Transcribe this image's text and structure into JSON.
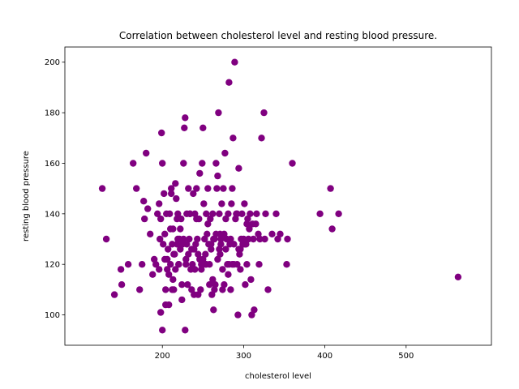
{
  "chart_data": {
    "type": "scatter",
    "title": "Correlation between cholesterol level and resting blood pressure.",
    "xlabel": "cholesterol level",
    "ylabel": "resting blood pressure",
    "xlim": [
      80,
      605
    ],
    "ylim": [
      88,
      206
    ],
    "xticks": [
      200,
      300,
      400,
      500
    ],
    "yticks": [
      100,
      120,
      140,
      160,
      180,
      200
    ],
    "grid": false,
    "marker_color": "#800080",
    "x": [
      126,
      131,
      141,
      149,
      150,
      158,
      164,
      168,
      172,
      175,
      177,
      178,
      180,
      182,
      185,
      190,
      192,
      194,
      196,
      197,
      198,
      199,
      200,
      201,
      202,
      203,
      204,
      205,
      206,
      207,
      208,
      209,
      210,
      211,
      211,
      212,
      213,
      214,
      215,
      216,
      217,
      218,
      219,
      220,
      221,
      222,
      223,
      224,
      225,
      226,
      227,
      228,
      229,
      230,
      231,
      232,
      233,
      234,
      235,
      236,
      237,
      238,
      239,
      240,
      241,
      242,
      243,
      244,
      245,
      246,
      247,
      248,
      249,
      250,
      251,
      252,
      253,
      254,
      255,
      256,
      257,
      258,
      259,
      260,
      261,
      262,
      263,
      264,
      265,
      266,
      267,
      268,
      269,
      270,
      271,
      272,
      273,
      274,
      275,
      276,
      277,
      278,
      279,
      280,
      281,
      282,
      283,
      284,
      285,
      286,
      287,
      288,
      289,
      290,
      291,
      292,
      293,
      294,
      295,
      296,
      297,
      298,
      299,
      300,
      301,
      302,
      303,
      304,
      305,
      306,
      307,
      308,
      309,
      310,
      311,
      312,
      313,
      315,
      316,
      318,
      319,
      320,
      322,
      325,
      326,
      327,
      330,
      335,
      340,
      342,
      345,
      353,
      354,
      360,
      394,
      407,
      409,
      417,
      564,
      200,
      212,
      226,
      240,
      254,
      264,
      278,
      286,
      198,
      208,
      218,
      228,
      234,
      244,
      258,
      266,
      272,
      282,
      292,
      300,
      204,
      214,
      222,
      232,
      242,
      250,
      262,
      270,
      276,
      206,
      216,
      224,
      236,
      246,
      256,
      268,
      274,
      288,
      296,
      302,
      210,
      220,
      230,
      248,
      260,
      284,
      294,
      304,
      188,
      196,
      203,
      213,
      219,
      229,
      239,
      249,
      253,
      263,
      271,
      281
    ],
    "y": [
      150,
      130,
      108,
      118,
      112,
      120,
      160,
      150,
      110,
      120,
      145,
      138,
      164,
      142,
      132,
      122,
      120,
      140,
      144,
      130,
      138,
      172,
      160,
      128,
      148,
      132,
      104,
      140,
      118,
      126,
      104,
      140,
      120,
      150,
      148,
      128,
      134,
      110,
      124,
      152,
      146,
      138,
      140,
      120,
      130,
      126,
      138,
      106,
      128,
      160,
      174,
      178,
      120,
      140,
      112,
      150,
      130,
      140,
      118,
      110,
      120,
      148,
      108,
      140,
      128,
      150,
      130,
      124,
      138,
      156,
      110,
      118,
      160,
      174,
      144,
      130,
      120,
      140,
      132,
      150,
      128,
      112,
      138,
      128,
      108,
      140,
      102,
      130,
      112,
      160,
      150,
      155,
      180,
      140,
      132,
      128,
      144,
      110,
      150,
      132,
      164,
      138,
      130,
      120,
      140,
      192,
      128,
      110,
      144,
      150,
      170,
      120,
      200,
      138,
      140,
      120,
      100,
      158,
      124,
      118,
      130,
      140,
      128,
      130,
      144,
      112,
      128,
      120,
      138,
      130,
      134,
      140,
      114,
      100,
      136,
      130,
      102,
      136,
      140,
      132,
      120,
      130,
      170,
      180,
      130,
      140,
      110,
      132,
      140,
      130,
      132,
      120,
      130,
      160,
      140,
      150,
      134,
      140,
      115,
      94,
      110,
      130,
      118,
      120,
      110,
      126,
      120,
      101,
      116,
      128,
      94,
      140,
      108,
      120,
      132,
      130,
      120,
      140,
      128,
      110,
      124,
      134,
      124,
      138,
      122,
      114,
      126,
      112,
      122,
      118,
      112,
      126,
      122,
      136,
      122,
      118,
      128,
      126,
      128,
      134,
      120,
      128,
      120,
      126,
      130,
      126,
      136,
      116,
      118,
      122,
      114,
      130,
      122,
      126,
      120,
      124,
      130,
      124,
      116
    ]
  }
}
